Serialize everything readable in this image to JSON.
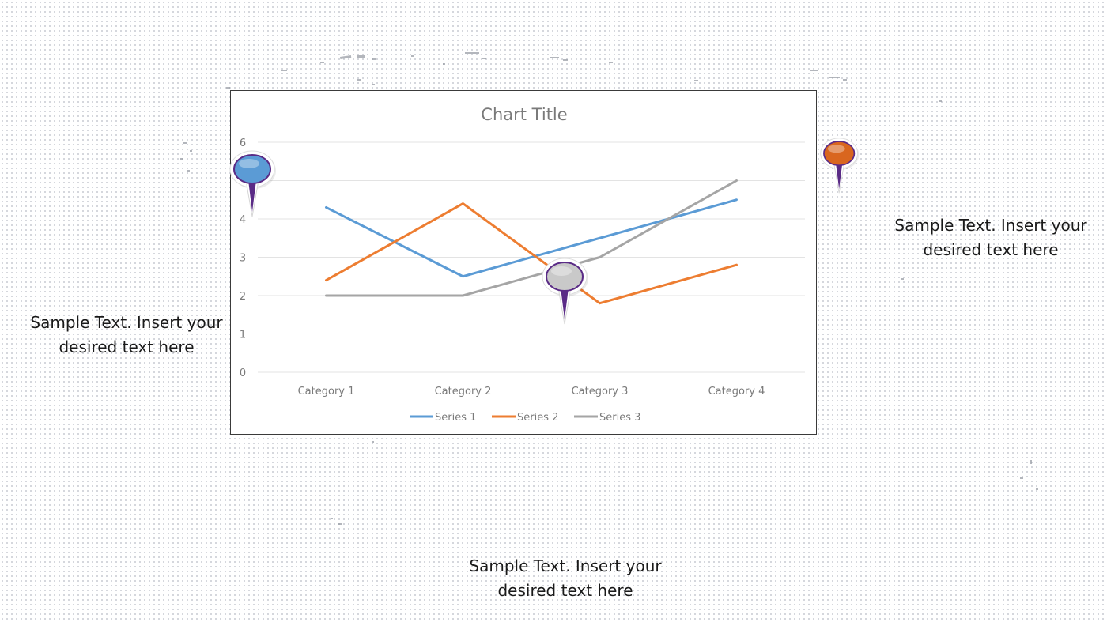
{
  "chart_data": {
    "type": "line",
    "title": "Chart Title",
    "categories": [
      "Category 1",
      "Category 2",
      "Category 3",
      "Category 4"
    ],
    "series": [
      {
        "name": "Series 1",
        "values": [
          4.3,
          2.5,
          3.5,
          4.5
        ],
        "color": "#5b9bd5"
      },
      {
        "name": "Series 2",
        "values": [
          2.4,
          4.4,
          1.8,
          2.8
        ],
        "color": "#ed7d31"
      },
      {
        "name": "Series 3",
        "values": [
          2,
          2,
          3,
          5
        ],
        "color": "#a5a5a5"
      }
    ],
    "ylim": [
      0,
      6
    ],
    "yticks": [
      "0",
      "1",
      "2",
      "3",
      "4",
      "5",
      "6"
    ],
    "grid": true,
    "legend": "bottom"
  },
  "text_blocks": {
    "left": "Sample Text. Insert your desired text here",
    "right": "Sample Text. Insert your desired text here",
    "bottom": "Sample Text. Insert your desired text here"
  },
  "pins": {
    "blue": {
      "color": "#5b9bd5",
      "icon": "map-pin-icon"
    },
    "gray": {
      "color": "#c9c9c9",
      "icon": "map-pin-icon"
    },
    "orange": {
      "color": "#d9661f",
      "icon": "map-pin-icon"
    }
  }
}
